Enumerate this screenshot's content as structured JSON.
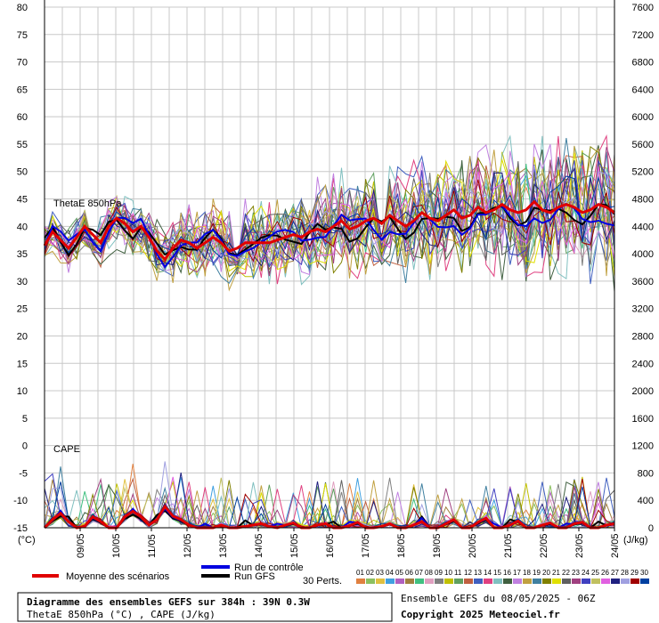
{
  "chart_data": {
    "type": "line",
    "title": "Diagramme des ensembles GEFS sur 384h : 39N 0.3W",
    "subtitle": "ThetaE 850hPa (°C) , CAPE (J/kg)",
    "run_info": "Ensemble GEFS du 08/05/2025 - 06Z",
    "copyright": "Copyright 2025 Meteociel.fr",
    "panel_labels": {
      "thetae": "ThetaE 850hPa",
      "cape": "CAPE"
    },
    "left_axis": {
      "unit": "(°C)",
      "ticks": [
        "80",
        "75",
        "70",
        "65",
        "60",
        "55",
        "50",
        "45",
        "40",
        "35",
        "30",
        "25",
        "20",
        "15",
        "10",
        "5",
        "0",
        "-5",
        "-10",
        "-15"
      ],
      "ylim": [
        -15,
        80
      ]
    },
    "right_axis": {
      "unit": "(J/kg)",
      "ticks": [
        "7600",
        "7200",
        "6800",
        "6400",
        "6000",
        "5600",
        "5200",
        "4800",
        "4400",
        "4000",
        "3600",
        "3200",
        "2800",
        "2400",
        "2000",
        "1600",
        "1200",
        "800",
        "400",
        "0"
      ],
      "ylim": [
        0,
        7600
      ]
    },
    "x_ticks": [
      "09/05",
      "10/05",
      "11/05",
      "12/05",
      "13/05",
      "14/05",
      "15/05",
      "16/05",
      "17/05",
      "18/05",
      "19/05",
      "20/05",
      "21/05",
      "22/05",
      "23/05",
      "24/05"
    ],
    "grid": true,
    "legend": {
      "mean": "Moyenne des scénarios",
      "control": "Run de contrôle",
      "gfs": "Run GFS",
      "perts": "30 Perts.",
      "member_labels": [
        "01",
        "02",
        "03",
        "04",
        "05",
        "06",
        "07",
        "08",
        "09",
        "10",
        "11",
        "12",
        "13",
        "14",
        "15",
        "16",
        "17",
        "18",
        "19",
        "20",
        "21",
        "22",
        "23",
        "24",
        "25",
        "26",
        "27",
        "28",
        "29",
        "30"
      ],
      "member_colors": [
        "#e08040",
        "#8cc060",
        "#e0c040",
        "#40a0e0",
        "#b060c0",
        "#a08040",
        "#40c080",
        "#e0a0c0",
        "#808080",
        "#c0c000",
        "#60a060",
        "#c06040",
        "#4060c0",
        "#e04080",
        "#80c0c0",
        "#406040",
        "#c080e0",
        "#c0a040",
        "#4080a0",
        "#808000",
        "#e0e000",
        "#606060",
        "#a04080",
        "#4040c0",
        "#c0c060",
        "#e060e0",
        "#202080",
        "#a0a0e0",
        "#a00000",
        "#0040a0"
      ]
    },
    "series": [
      {
        "name": "Moyenne des scénarios",
        "thetae": [
          36.5,
          39.0,
          37.5,
          36.0,
          38.0,
          40.0,
          38.5,
          37.0,
          40.0,
          41.5,
          40.5,
          39.0,
          40.0,
          38.0,
          35.5,
          34.0,
          36.0,
          37.5,
          37.0,
          36.0,
          37.0,
          38.0,
          37.0,
          35.5,
          36.0,
          37.0,
          37.0,
          37.0,
          37.0,
          37.5,
          38.0,
          38.5,
          38.0,
          39.0,
          39.5,
          39.0,
          40.0,
          41.0,
          39.5,
          40.0,
          41.0,
          41.5,
          40.5,
          42.0,
          41.0,
          40.0,
          41.0,
          42.5,
          41.5,
          41.0,
          42.0,
          43.0,
          41.5,
          42.0,
          43.5,
          42.5,
          43.0,
          44.0,
          43.0,
          42.5,
          43.0,
          44.5,
          43.0,
          42.5,
          43.5,
          44.0,
          43.5,
          42.5,
          43.0,
          44.0,
          43.5,
          42.5
        ],
        "cape": [
          0,
          120,
          210,
          90,
          0,
          20,
          160,
          90,
          0,
          0,
          160,
          240,
          160,
          40,
          120,
          310,
          170,
          120,
          40,
          0,
          0,
          0,
          40,
          0,
          0,
          20,
          40,
          60,
          20,
          0,
          40,
          70,
          0,
          0,
          40,
          60,
          0,
          0,
          30,
          80,
          0,
          0,
          20,
          60,
          0,
          0,
          40,
          90,
          0,
          0,
          60,
          120,
          0,
          0,
          80,
          140,
          0,
          0,
          40,
          100,
          0,
          0,
          40,
          70,
          0,
          0,
          60,
          80,
          0,
          0,
          40,
          60
        ]
      }
    ]
  },
  "colors": {
    "mean": "#e00000",
    "control": "#0000e0",
    "gfs": "#000000",
    "grid": "#c8c8c8"
  }
}
